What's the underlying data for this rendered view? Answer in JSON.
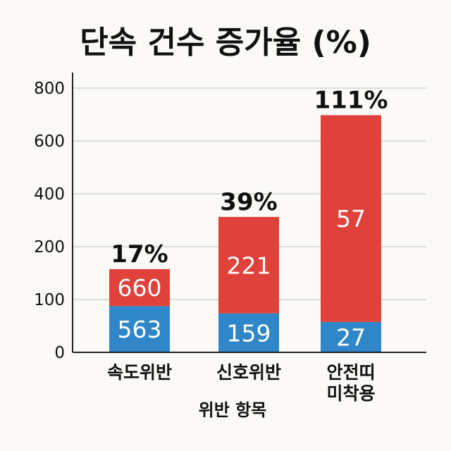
{
  "chart_data": {
    "type": "bar",
    "stacked": true,
    "title": "단속 건수 증가율 (%)",
    "xlabel": "위반 항목",
    "ylabel": "",
    "categories": [
      [
        "속도위반"
      ],
      [
        "신호위반"
      ],
      [
        "안전띠",
        "미착용"
      ]
    ],
    "ylim": [
      0,
      800
    ],
    "yticks": [
      0,
      100,
      200,
      400,
      600,
      800
    ],
    "grid": true,
    "series": [
      {
        "values": [
          140,
          118,
          92
        ],
        "labels": [
          "563",
          "159",
          "27"
        ],
        "color": "#2f86c8"
      },
      {
        "values": [
          112,
          292,
          626
        ],
        "labels": [
          "660",
          "221",
          "57"
        ],
        "color": "#e0413b"
      }
    ],
    "annotations": [
      "17%",
      "39%",
      "111%"
    ]
  }
}
